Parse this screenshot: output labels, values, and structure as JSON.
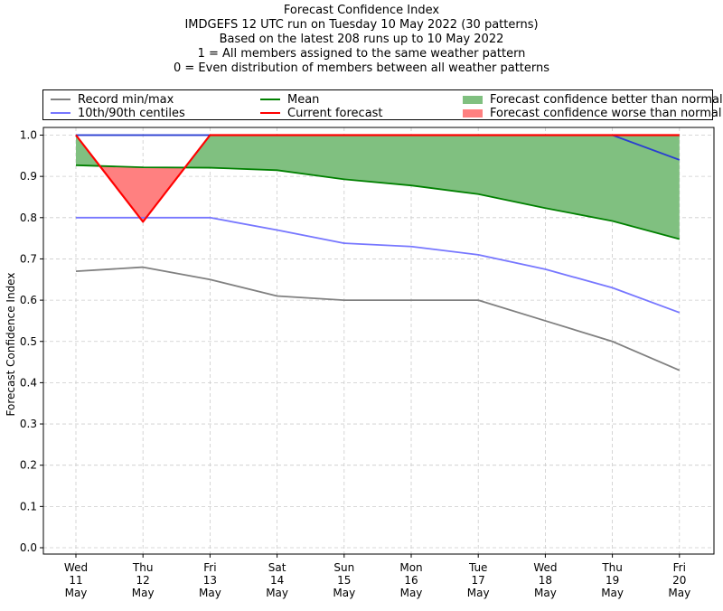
{
  "title_lines": [
    "Forecast Confidence Index",
    "IMDGEFS 12 UTC run on Tuesday 10 May 2022 (30 patterns)",
    "Based on the latest 208 runs up to 10 May 2022",
    "1 = All members assigned to the same weather pattern",
    "0 = Even distribution of members between all weather patterns"
  ],
  "legend": {
    "record": "Record min/max",
    "centiles": "10th/90th centiles",
    "mean": "Mean",
    "current": "Current forecast",
    "better": "Forecast confidence better than normal",
    "worse": "Forecast confidence worse than normal"
  },
  "colors": {
    "record": "#808080",
    "centiles": "#7777ff",
    "record_max": "#2a3fd0",
    "mean": "#008000",
    "current": "#ff0000",
    "better_fill": "#80c080",
    "worse_fill": "#ff8080"
  },
  "chart_data": {
    "type": "line",
    "ylabel": "Forecast Confidence Index",
    "ylim": [
      0,
      1
    ],
    "yticks": [
      "0.0",
      "0.1",
      "0.2",
      "0.3",
      "0.4",
      "0.5",
      "0.6",
      "0.7",
      "0.8",
      "0.9",
      "1.0"
    ],
    "grid": true,
    "categories": [
      [
        "Wed",
        "11",
        "May"
      ],
      [
        "Thu",
        "12",
        "May"
      ],
      [
        "Fri",
        "13",
        "May"
      ],
      [
        "Sat",
        "14",
        "May"
      ],
      [
        "Sun",
        "15",
        "May"
      ],
      [
        "Mon",
        "16",
        "May"
      ],
      [
        "Tue",
        "17",
        "May"
      ],
      [
        "Wed",
        "18",
        "May"
      ],
      [
        "Thu",
        "19",
        "May"
      ],
      [
        "Fri",
        "20",
        "May"
      ]
    ],
    "series": [
      {
        "name": "Record min",
        "values": [
          0.67,
          0.68,
          0.65,
          0.61,
          0.6,
          0.6,
          0.6,
          0.55,
          0.5,
          0.43
        ]
      },
      {
        "name": "Record max",
        "values": [
          1.0,
          1.0,
          1.0,
          1.0,
          1.0,
          1.0,
          1.0,
          1.0,
          1.0,
          0.94
        ]
      },
      {
        "name": "10th centile",
        "values": [
          0.8,
          0.8,
          0.8,
          0.77,
          0.738,
          0.73,
          0.71,
          0.675,
          0.63,
          0.57
        ]
      },
      {
        "name": "90th centile",
        "values": [
          1.0,
          1.0,
          1.0,
          1.0,
          1.0,
          1.0,
          1.0,
          1.0,
          1.0,
          1.0
        ]
      },
      {
        "name": "Mean",
        "values": [
          0.927,
          0.922,
          0.921,
          0.915,
          0.893,
          0.878,
          0.857,
          0.823,
          0.792,
          0.748
        ]
      },
      {
        "name": "Current forecast",
        "values": [
          1.0,
          0.79,
          1.0,
          1.0,
          1.0,
          1.0,
          1.0,
          1.0,
          1.0,
          1.0
        ]
      }
    ]
  }
}
